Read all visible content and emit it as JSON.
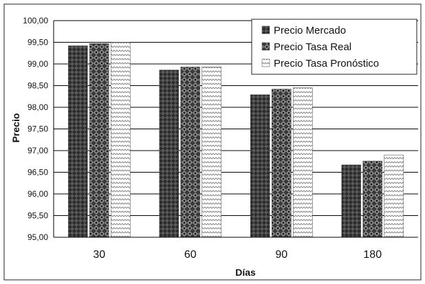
{
  "chart_data": {
    "type": "bar",
    "xlabel": "Días",
    "ylabel": "Precio",
    "categories": [
      "30",
      "60",
      "90",
      "180"
    ],
    "ylim": [
      95.0,
      100.0
    ],
    "ytick_step": 0.5,
    "yticks": [
      "95,00",
      "95,50",
      "96,00",
      "96,50",
      "97,00",
      "97,50",
      "98,00",
      "98,50",
      "99,00",
      "99,50",
      "100,00"
    ],
    "grid": true,
    "legend_position": "top-right",
    "series": [
      {
        "name": "Precio Mercado",
        "values": [
          99.42,
          98.86,
          98.29,
          96.67
        ]
      },
      {
        "name": "Precio Tasa Real",
        "values": [
          99.47,
          98.93,
          98.42,
          96.76
        ]
      },
      {
        "name": "Precio Tasa Pronóstico",
        "values": [
          99.5,
          98.93,
          98.45,
          96.9
        ]
      }
    ]
  }
}
